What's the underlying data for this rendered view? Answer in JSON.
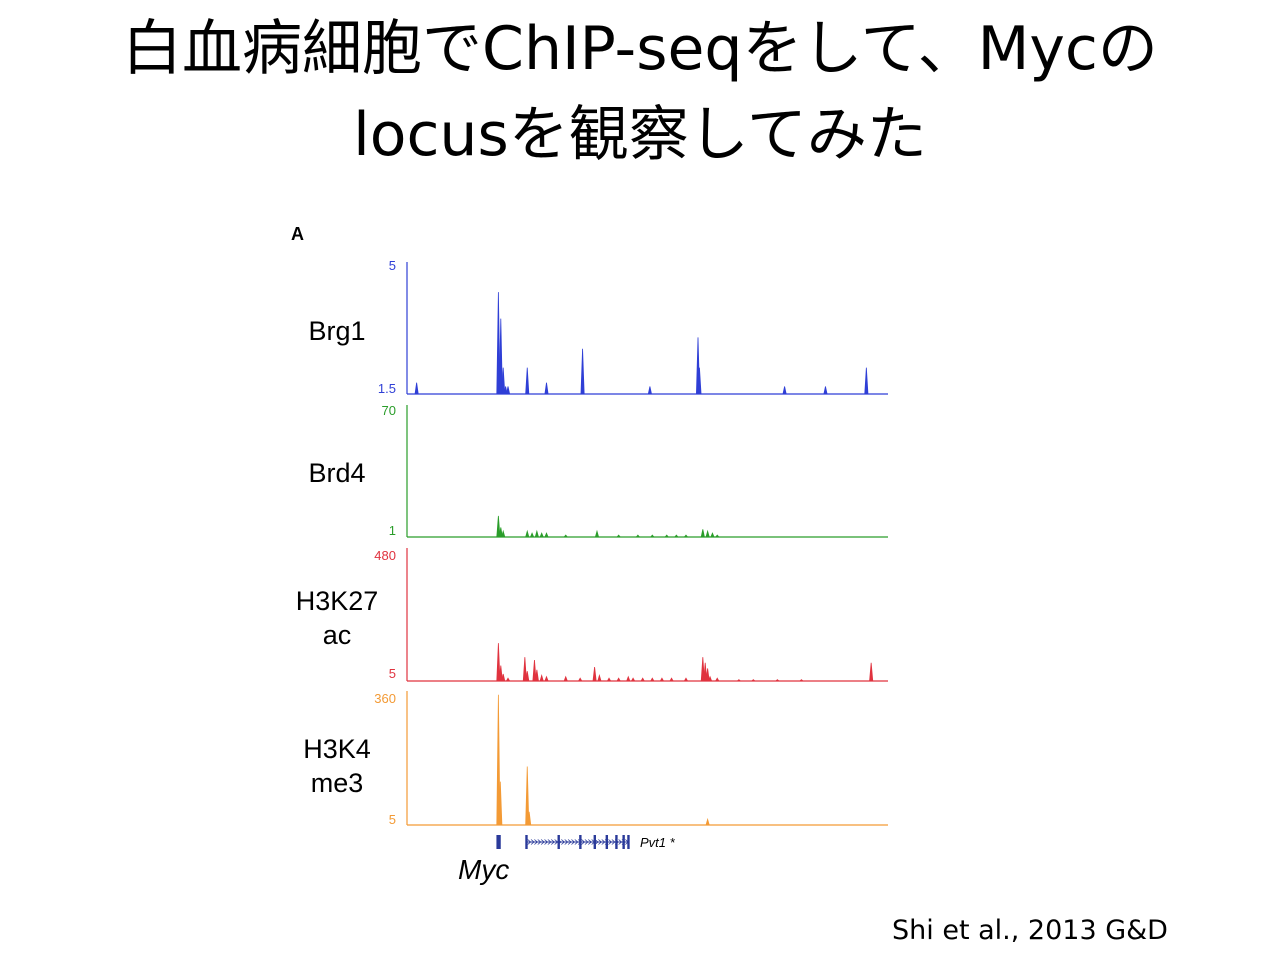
{
  "title": {
    "line1": "白血病細胞でChIP-seqをして、Mycの",
    "line2": "locusを観察してみた"
  },
  "panel_label": "A",
  "citation": "Shi et al., 2013 G&D",
  "chart_data": {
    "type": "area",
    "description_source": "ChIP-seq genome browser tracks at the Myc locus",
    "x": [
      0,
      0.5,
      1,
      1.5,
      2,
      2.5,
      3,
      3.5,
      4,
      4.5,
      5,
      5.5,
      6,
      6.5,
      7,
      7.5,
      8,
      8.5,
      9,
      9.5,
      10,
      10.5,
      11,
      11.5,
      12,
      12.5,
      13,
      13.5,
      14,
      14.5,
      15,
      15.5,
      16,
      16.5,
      17,
      17.5,
      18,
      18.5,
      19,
      19.5,
      20,
      20.5,
      21,
      21.5,
      22,
      22.5,
      23,
      23.5,
      24,
      24.5,
      25,
      25.5,
      26,
      26.5,
      27,
      27.5,
      28,
      28.5,
      29,
      29.5,
      30,
      30.5,
      31,
      31.5,
      32,
      32.5,
      33,
      33.5,
      34,
      34.5,
      35,
      35.5,
      36,
      36.5,
      37,
      37.5,
      38,
      38.5,
      39,
      39.5,
      40,
      40.5,
      41,
      41.5,
      42,
      42.5,
      43,
      43.5,
      44,
      44.5,
      45,
      45.5,
      46,
      46.5,
      47,
      47.5,
      48,
      48.5,
      49,
      49.5,
      50,
      50.5,
      51,
      51.5,
      52,
      52.5,
      53,
      53.5,
      54,
      54.5,
      55,
      55.5,
      56,
      56.5,
      57,
      57.5,
      58,
      58.5,
      59,
      59.5,
      60,
      60.5,
      61,
      61.5,
      62,
      62.5,
      63,
      63.5,
      64,
      64.5,
      65,
      65.5,
      66,
      66.5,
      67,
      67.5,
      68,
      68.5,
      69,
      69.5,
      70,
      70.5,
      71,
      71.5,
      72,
      72.5,
      73,
      73.5,
      74,
      74.5,
      75,
      75.5,
      76,
      76.5,
      77,
      77.5,
      78,
      78.5,
      79,
      79.5,
      80,
      80.5,
      81,
      81.5,
      82,
      82.5,
      83,
      83.5,
      84,
      84.5,
      85,
      85.5,
      86,
      86.5,
      87,
      87.5,
      88,
      88.5,
      89,
      89.5,
      90,
      90.5,
      91,
      91.5,
      92,
      92.5,
      93,
      93.5,
      94,
      94.5,
      95,
      95.5,
      96,
      96.5,
      97,
      97.5,
      98,
      98.5,
      99,
      99.5,
      100
    ],
    "series": [
      {
        "name": "Brg1",
        "color": "#2f3fd6",
        "ylim": [
          1.5,
          5
        ],
        "tick_labels": [
          "5",
          "1.5"
        ],
        "peaks": [
          [
            2,
            1.8
          ],
          [
            19,
            4.2
          ],
          [
            19.5,
            3.5
          ],
          [
            20,
            2.2
          ],
          [
            20.5,
            1.7
          ],
          [
            21,
            1.7
          ],
          [
            25,
            2.2
          ],
          [
            29,
            1.8
          ],
          [
            36.5,
            2.7
          ],
          [
            50.5,
            1.7
          ],
          [
            60.5,
            3.0
          ],
          [
            60.8,
            2.2
          ],
          [
            78.5,
            1.7
          ],
          [
            87,
            1.7
          ],
          [
            95.5,
            2.2
          ]
        ]
      },
      {
        "name": "Brd4",
        "color": "#2a9d2a",
        "ylim": [
          1,
          70
        ],
        "tick_labels": [
          "70",
          "1"
        ],
        "peaks": [
          [
            19,
            12
          ],
          [
            19.5,
            6
          ],
          [
            20,
            4
          ],
          [
            25,
            4
          ],
          [
            26,
            3
          ],
          [
            27,
            4
          ],
          [
            28,
            3
          ],
          [
            29,
            3
          ],
          [
            33,
            2
          ],
          [
            39.5,
            4
          ],
          [
            44,
            2
          ],
          [
            48,
            2
          ],
          [
            51,
            2
          ],
          [
            54,
            2
          ],
          [
            56,
            2
          ],
          [
            58,
            2
          ],
          [
            61.5,
            5
          ],
          [
            62.5,
            4
          ],
          [
            63.5,
            3
          ],
          [
            64.5,
            2
          ]
        ]
      },
      {
        "name": "H3K27 ac",
        "color": "#e0333f",
        "ylim": [
          5,
          480
        ],
        "tick_labels": [
          "480",
          "5"
        ],
        "peaks": [
          [
            19,
            140
          ],
          [
            19.5,
            60
          ],
          [
            20,
            30
          ],
          [
            21,
            15
          ],
          [
            24.5,
            90
          ],
          [
            25,
            40
          ],
          [
            26.5,
            80
          ],
          [
            27,
            45
          ],
          [
            28,
            25
          ],
          [
            29,
            20
          ],
          [
            33,
            20
          ],
          [
            36,
            15
          ],
          [
            39,
            55
          ],
          [
            40,
            25
          ],
          [
            42,
            15
          ],
          [
            44,
            15
          ],
          [
            46,
            20
          ],
          [
            47,
            15
          ],
          [
            49,
            15
          ],
          [
            51,
            15
          ],
          [
            53,
            15
          ],
          [
            55,
            15
          ],
          [
            58,
            15
          ],
          [
            61.5,
            90
          ],
          [
            62,
            70
          ],
          [
            62.5,
            50
          ],
          [
            63,
            20
          ],
          [
            64.5,
            15
          ],
          [
            69,
            10
          ],
          [
            72,
            10
          ],
          [
            77,
            10
          ],
          [
            82,
            10
          ],
          [
            96.5,
            70
          ]
        ]
      },
      {
        "name": "H3K4 me3",
        "color": "#f39a35",
        "ylim": [
          5,
          360
        ],
        "tick_labels": [
          "360",
          "5"
        ],
        "peaks": [
          [
            19,
            350
          ],
          [
            19.4,
            120
          ],
          [
            25,
            160
          ],
          [
            25.4,
            40
          ],
          [
            62.5,
            20
          ]
        ]
      }
    ],
    "genes": [
      {
        "name": "Myc",
        "start": 18.8,
        "end": 19.4,
        "exons": [
          18.8,
          19.0,
          19.2
        ]
      },
      {
        "name": "Pvt1 *",
        "start": 24.8,
        "end": 46.0,
        "exons": [
          24.8,
          31.5,
          36.0,
          39.0,
          41.5,
          43.5,
          45.0,
          46.0
        ]
      }
    ],
    "xlabel": "",
    "ylabel": "",
    "grid": false
  }
}
